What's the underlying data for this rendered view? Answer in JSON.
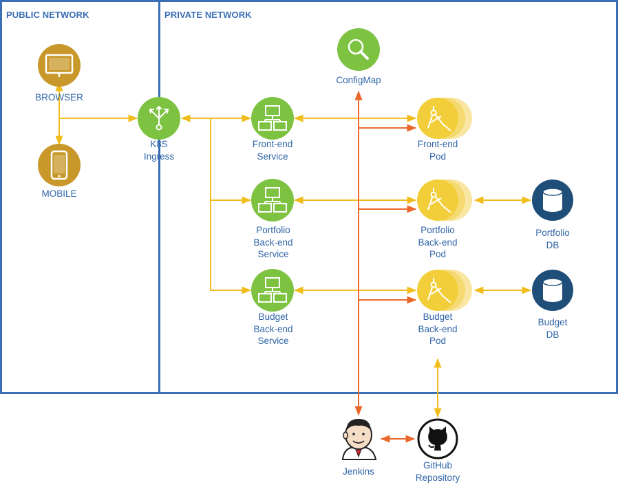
{
  "zones": {
    "public": "PUBLIC NETWORK",
    "private": "PRIVATE NETWORK"
  },
  "nodes": {
    "browser": "BROWSER",
    "mobile": "MOBILE",
    "ingress": "K8S\nIngress",
    "configmap": "ConfigMap",
    "frontend_service": "Front-end\nService",
    "portfolio_service": "Portfolio\nBack-end\nService",
    "budget_service": "Budget\nBack-end\nService",
    "frontend_pod": "Front-end\nPod",
    "portfolio_pod": "Portfolio\nBack-end\nPod",
    "budget_pod": "Budget\nBack-end\nPod",
    "portfolio_db": "Portfolio\nDB",
    "budget_db": "Budget\nDB",
    "jenkins": "Jenkins",
    "github": "GitHub\nRepository"
  },
  "colors": {
    "zone_border": "#3a6eb5",
    "label": "#2f65a8",
    "client_icon": "#c8982a",
    "service_icon": "#7ec242",
    "pod_icon": "#f2cf3a",
    "db_icon": "#1f4e79",
    "edge_yellow": "#f0bd1c",
    "edge_orange": "#e8672a"
  },
  "icons": {
    "browser": "monitor-icon",
    "mobile": "phone-icon",
    "ingress": "ingress-icon",
    "configmap": "magnifier-icon",
    "service": "network-icon",
    "pod": "pod-icon",
    "db": "database-icon",
    "jenkins": "jenkins-icon",
    "github": "github-icon"
  }
}
